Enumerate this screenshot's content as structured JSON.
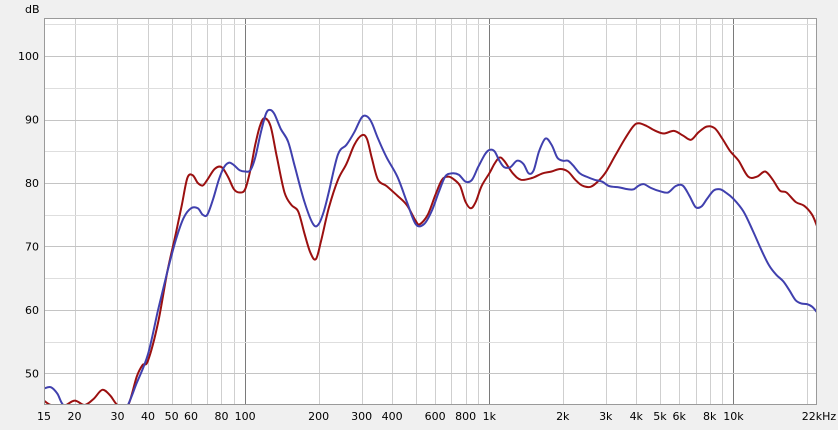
{
  "chart_data": {
    "type": "line",
    "x_scale": "log",
    "y_unit": "dB",
    "xlim": [
      15,
      22000
    ],
    "ylim": [
      45,
      106
    ],
    "grid": true,
    "x_ticks": [
      {
        "v": 15,
        "label": "15"
      },
      {
        "v": 20,
        "label": "20"
      },
      {
        "v": 30,
        "label": "30"
      },
      {
        "v": 40,
        "label": "40"
      },
      {
        "v": 50,
        "label": "50"
      },
      {
        "v": 60,
        "label": "60"
      },
      {
        "v": 80,
        "label": "80"
      },
      {
        "v": 100,
        "label": "100"
      },
      {
        "v": 200,
        "label": "200"
      },
      {
        "v": 300,
        "label": "300"
      },
      {
        "v": 400,
        "label": "400"
      },
      {
        "v": 600,
        "label": "600"
      },
      {
        "v": 800,
        "label": "800"
      },
      {
        "v": 1000,
        "label": "1k"
      },
      {
        "v": 2000,
        "label": "2k"
      },
      {
        "v": 3000,
        "label": "3k"
      },
      {
        "v": 4000,
        "label": "4k"
      },
      {
        "v": 5000,
        "label": "5k"
      },
      {
        "v": 6000,
        "label": "6k"
      },
      {
        "v": 8000,
        "label": "8k"
      },
      {
        "v": 10000,
        "label": "10k"
      },
      {
        "v": 22000,
        "label": "22kHz"
      }
    ],
    "y_ticks": [
      50,
      60,
      70,
      80,
      90,
      100
    ],
    "series": [
      {
        "color": "#9b1010",
        "points": [
          [
            15,
            45.7
          ],
          [
            16,
            45
          ],
          [
            18,
            44.8
          ],
          [
            20,
            45.7
          ],
          [
            22,
            45
          ],
          [
            24,
            46
          ],
          [
            26,
            47.4
          ],
          [
            28,
            46.5
          ],
          [
            30,
            45
          ],
          [
            33,
            44.8
          ],
          [
            36,
            49.5
          ],
          [
            38,
            51.3
          ],
          [
            40,
            52
          ],
          [
            44,
            58
          ],
          [
            48,
            66
          ],
          [
            52,
            72
          ],
          [
            55,
            76.5
          ],
          [
            58,
            80.8
          ],
          [
            61,
            81.2
          ],
          [
            64,
            80
          ],
          [
            67,
            79.6
          ],
          [
            70,
            80.5
          ],
          [
            75,
            82.2
          ],
          [
            80,
            82.5
          ],
          [
            85,
            81
          ],
          [
            90,
            79
          ],
          [
            95,
            78.5
          ],
          [
            100,
            79
          ],
          [
            105,
            82
          ],
          [
            110,
            86
          ],
          [
            115,
            89
          ],
          [
            120,
            90.2
          ],
          [
            127,
            89
          ],
          [
            135,
            84
          ],
          [
            145,
            78.5
          ],
          [
            155,
            76.5
          ],
          [
            165,
            75.5
          ],
          [
            175,
            72
          ],
          [
            185,
            69
          ],
          [
            195,
            68
          ],
          [
            205,
            71
          ],
          [
            220,
            76
          ],
          [
            240,
            80.5
          ],
          [
            260,
            83
          ],
          [
            280,
            86
          ],
          [
            300,
            87.5
          ],
          [
            315,
            87
          ],
          [
            330,
            84
          ],
          [
            350,
            80.5
          ],
          [
            380,
            79.5
          ],
          [
            420,
            78
          ],
          [
            460,
            76.5
          ],
          [
            500,
            74
          ],
          [
            520,
            73.5
          ],
          [
            560,
            75
          ],
          [
            600,
            78
          ],
          [
            640,
            80.5
          ],
          [
            680,
            81
          ],
          [
            720,
            80.5
          ],
          [
            760,
            79.5
          ],
          [
            800,
            77
          ],
          [
            840,
            76
          ],
          [
            880,
            77
          ],
          [
            930,
            79.5
          ],
          [
            1000,
            81.5
          ],
          [
            1050,
            83
          ],
          [
            1100,
            84
          ],
          [
            1150,
            83.5
          ],
          [
            1250,
            81.5
          ],
          [
            1350,
            80.5
          ],
          [
            1500,
            80.8
          ],
          [
            1650,
            81.5
          ],
          [
            1800,
            81.8
          ],
          [
            1950,
            82.2
          ],
          [
            2100,
            81.8
          ],
          [
            2250,
            80.5
          ],
          [
            2400,
            79.6
          ],
          [
            2600,
            79.4
          ],
          [
            2800,
            80.3
          ],
          [
            3000,
            81.7
          ],
          [
            3300,
            84.5
          ],
          [
            3600,
            87
          ],
          [
            3900,
            89
          ],
          [
            4100,
            89.4
          ],
          [
            4400,
            89
          ],
          [
            4800,
            88.2
          ],
          [
            5200,
            87.8
          ],
          [
            5700,
            88.2
          ],
          [
            6200,
            87.5
          ],
          [
            6700,
            86.8
          ],
          [
            7200,
            88
          ],
          [
            7800,
            88.9
          ],
          [
            8400,
            88.6
          ],
          [
            9000,
            87
          ],
          [
            9700,
            85
          ],
          [
            10500,
            83.5
          ],
          [
            11500,
            81
          ],
          [
            12500,
            81
          ],
          [
            13500,
            81.8
          ],
          [
            14500,
            80.5
          ],
          [
            15500,
            78.8
          ],
          [
            16500,
            78.5
          ],
          [
            18000,
            77
          ],
          [
            19500,
            76.4
          ],
          [
            21000,
            75
          ],
          [
            22000,
            73.2
          ]
        ]
      },
      {
        "color": "#4040ae",
        "points": [
          [
            15,
            47.6
          ],
          [
            16,
            47.8
          ],
          [
            17,
            46.8
          ],
          [
            18,
            45
          ],
          [
            20,
            44.5
          ],
          [
            24,
            44
          ],
          [
            28,
            43.5
          ],
          [
            32,
            44
          ],
          [
            36,
            48.5
          ],
          [
            40,
            53
          ],
          [
            44,
            60
          ],
          [
            48,
            66
          ],
          [
            52,
            71
          ],
          [
            56,
            74.5
          ],
          [
            60,
            76
          ],
          [
            64,
            76
          ],
          [
            67,
            75
          ],
          [
            70,
            75
          ],
          [
            74,
            77.5
          ],
          [
            78,
            80.5
          ],
          [
            82,
            82.5
          ],
          [
            86,
            83.2
          ],
          [
            90,
            82.8
          ],
          [
            95,
            82
          ],
          [
            100,
            81.8
          ],
          [
            105,
            82
          ],
          [
            110,
            84
          ],
          [
            116,
            88
          ],
          [
            122,
            91
          ],
          [
            127,
            91.5
          ],
          [
            132,
            90.8
          ],
          [
            140,
            88.5
          ],
          [
            150,
            86.5
          ],
          [
            160,
            82.5
          ],
          [
            175,
            77
          ],
          [
            190,
            73.5
          ],
          [
            200,
            73.5
          ],
          [
            210,
            75.5
          ],
          [
            220,
            78.5
          ],
          [
            240,
            84.5
          ],
          [
            260,
            86
          ],
          [
            280,
            88
          ],
          [
            300,
            90.3
          ],
          [
            315,
            90.5
          ],
          [
            330,
            89.5
          ],
          [
            350,
            87
          ],
          [
            380,
            84
          ],
          [
            420,
            81
          ],
          [
            460,
            77
          ],
          [
            500,
            73.5
          ],
          [
            540,
            73.5
          ],
          [
            580,
            75.5
          ],
          [
            620,
            78.5
          ],
          [
            660,
            81
          ],
          [
            700,
            81.5
          ],
          [
            750,
            81.3
          ],
          [
            800,
            80.2
          ],
          [
            850,
            80.5
          ],
          [
            900,
            82.5
          ],
          [
            960,
            84.5
          ],
          [
            1000,
            85.2
          ],
          [
            1050,
            85
          ],
          [
            1100,
            83.5
          ],
          [
            1150,
            82.5
          ],
          [
            1220,
            82.5
          ],
          [
            1300,
            83.5
          ],
          [
            1380,
            83
          ],
          [
            1450,
            81.5
          ],
          [
            1520,
            82
          ],
          [
            1600,
            85
          ],
          [
            1700,
            87
          ],
          [
            1800,
            86
          ],
          [
            1900,
            84
          ],
          [
            2000,
            83.5
          ],
          [
            2100,
            83.5
          ],
          [
            2200,
            82.8
          ],
          [
            2350,
            81.5
          ],
          [
            2500,
            81
          ],
          [
            2700,
            80.5
          ],
          [
            2900,
            80.2
          ],
          [
            3100,
            79.5
          ],
          [
            3400,
            79.3
          ],
          [
            3700,
            79
          ],
          [
            3900,
            79
          ],
          [
            4100,
            79.6
          ],
          [
            4300,
            79.8
          ],
          [
            4600,
            79.2
          ],
          [
            5000,
            78.7
          ],
          [
            5400,
            78.5
          ],
          [
            5800,
            79.5
          ],
          [
            6200,
            79.6
          ],
          [
            6600,
            78
          ],
          [
            7000,
            76.2
          ],
          [
            7400,
            76.3
          ],
          [
            7800,
            77.5
          ],
          [
            8300,
            78.8
          ],
          [
            8800,
            79
          ],
          [
            9300,
            78.5
          ],
          [
            10000,
            77.5
          ],
          [
            11000,
            75.5
          ],
          [
            12000,
            72.5
          ],
          [
            13000,
            69.5
          ],
          [
            14000,
            67
          ],
          [
            15000,
            65.5
          ],
          [
            16000,
            64.5
          ],
          [
            17000,
            63
          ],
          [
            18000,
            61.5
          ],
          [
            19000,
            61
          ],
          [
            20000,
            60.9
          ],
          [
            21000,
            60.5
          ],
          [
            22000,
            59.6
          ]
        ]
      }
    ]
  }
}
